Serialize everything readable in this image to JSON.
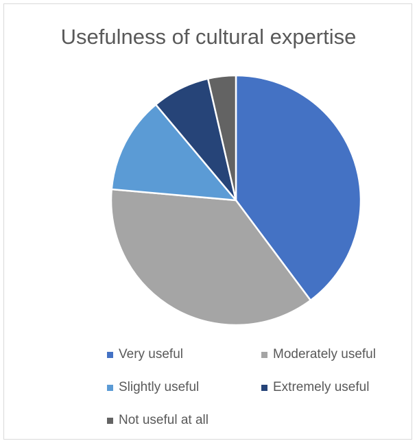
{
  "chart_data": {
    "type": "pie",
    "title": "Usefulness of cultural expertise",
    "categories": [
      "Very useful",
      "Moderately useful",
      "Slightly useful",
      "Extremely useful",
      "Not useful at all"
    ],
    "values": [
      39.8,
      36.6,
      12.5,
      7.5,
      3.6
    ],
    "colors": [
      "#4472C4",
      "#A5A5A5",
      "#5B9BD5",
      "#264478",
      "#636363"
    ],
    "legend_position": "bottom",
    "start_angle_degrees": 0,
    "direction": "clockwise"
  }
}
